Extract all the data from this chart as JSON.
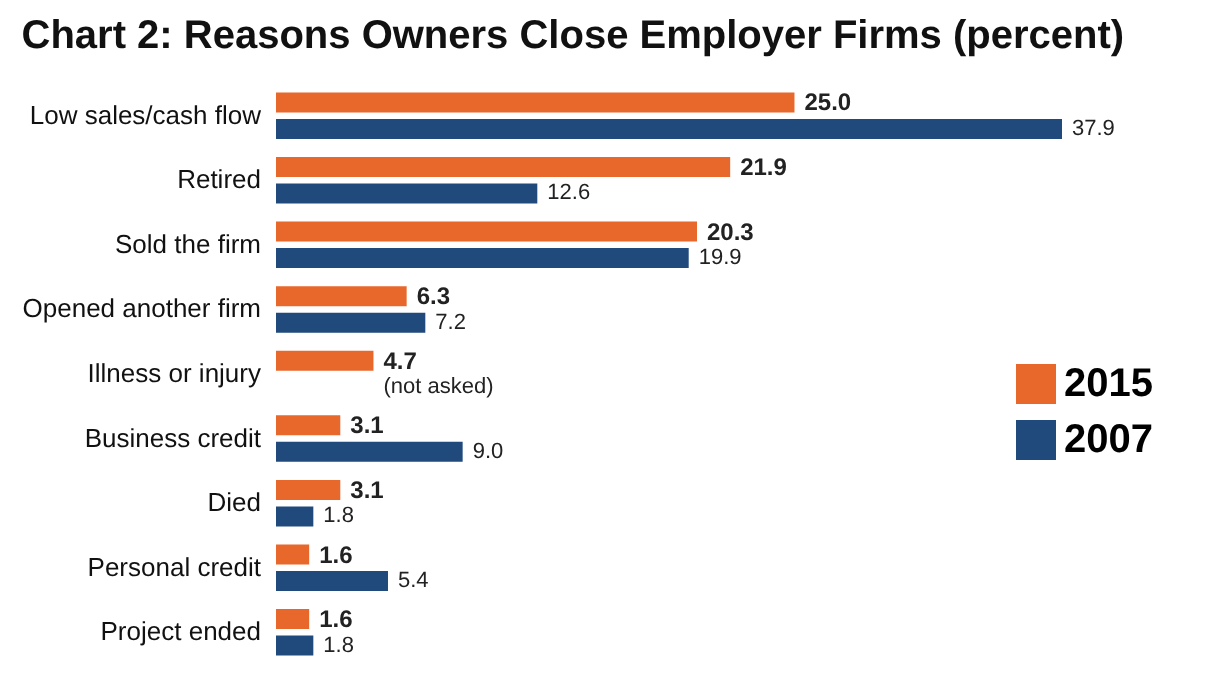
{
  "chart_data": {
    "type": "bar",
    "orientation": "horizontal",
    "title": "Chart 2: Reasons Owners Close Employer Firms (percent)",
    "categories": [
      "Low sales/cash flow",
      "Retired",
      "Sold the firm",
      "Opened another firm",
      "Illness or injury",
      "Business credit",
      "Died",
      "Personal credit",
      "Project ended"
    ],
    "series": [
      {
        "name": "2015",
        "color": "#e8672a",
        "values": [
          25.0,
          21.9,
          20.3,
          6.3,
          4.7,
          3.1,
          3.1,
          1.6,
          1.6
        ],
        "value_labels": [
          "25.0",
          "21.9",
          "20.3",
          "6.3",
          "4.7",
          "3.1",
          "3.1",
          "1.6",
          "1.6"
        ]
      },
      {
        "name": "2007",
        "color": "#204a7c",
        "values": [
          37.9,
          12.6,
          19.9,
          7.2,
          null,
          9.0,
          1.8,
          5.4,
          1.8
        ],
        "value_labels": [
          "37.9",
          "12.6",
          "19.9",
          "7.2",
          "(not asked)",
          "9.0",
          "1.8",
          "5.4",
          "1.8"
        ]
      }
    ],
    "legend": "right",
    "tick_labels": "y"
  }
}
